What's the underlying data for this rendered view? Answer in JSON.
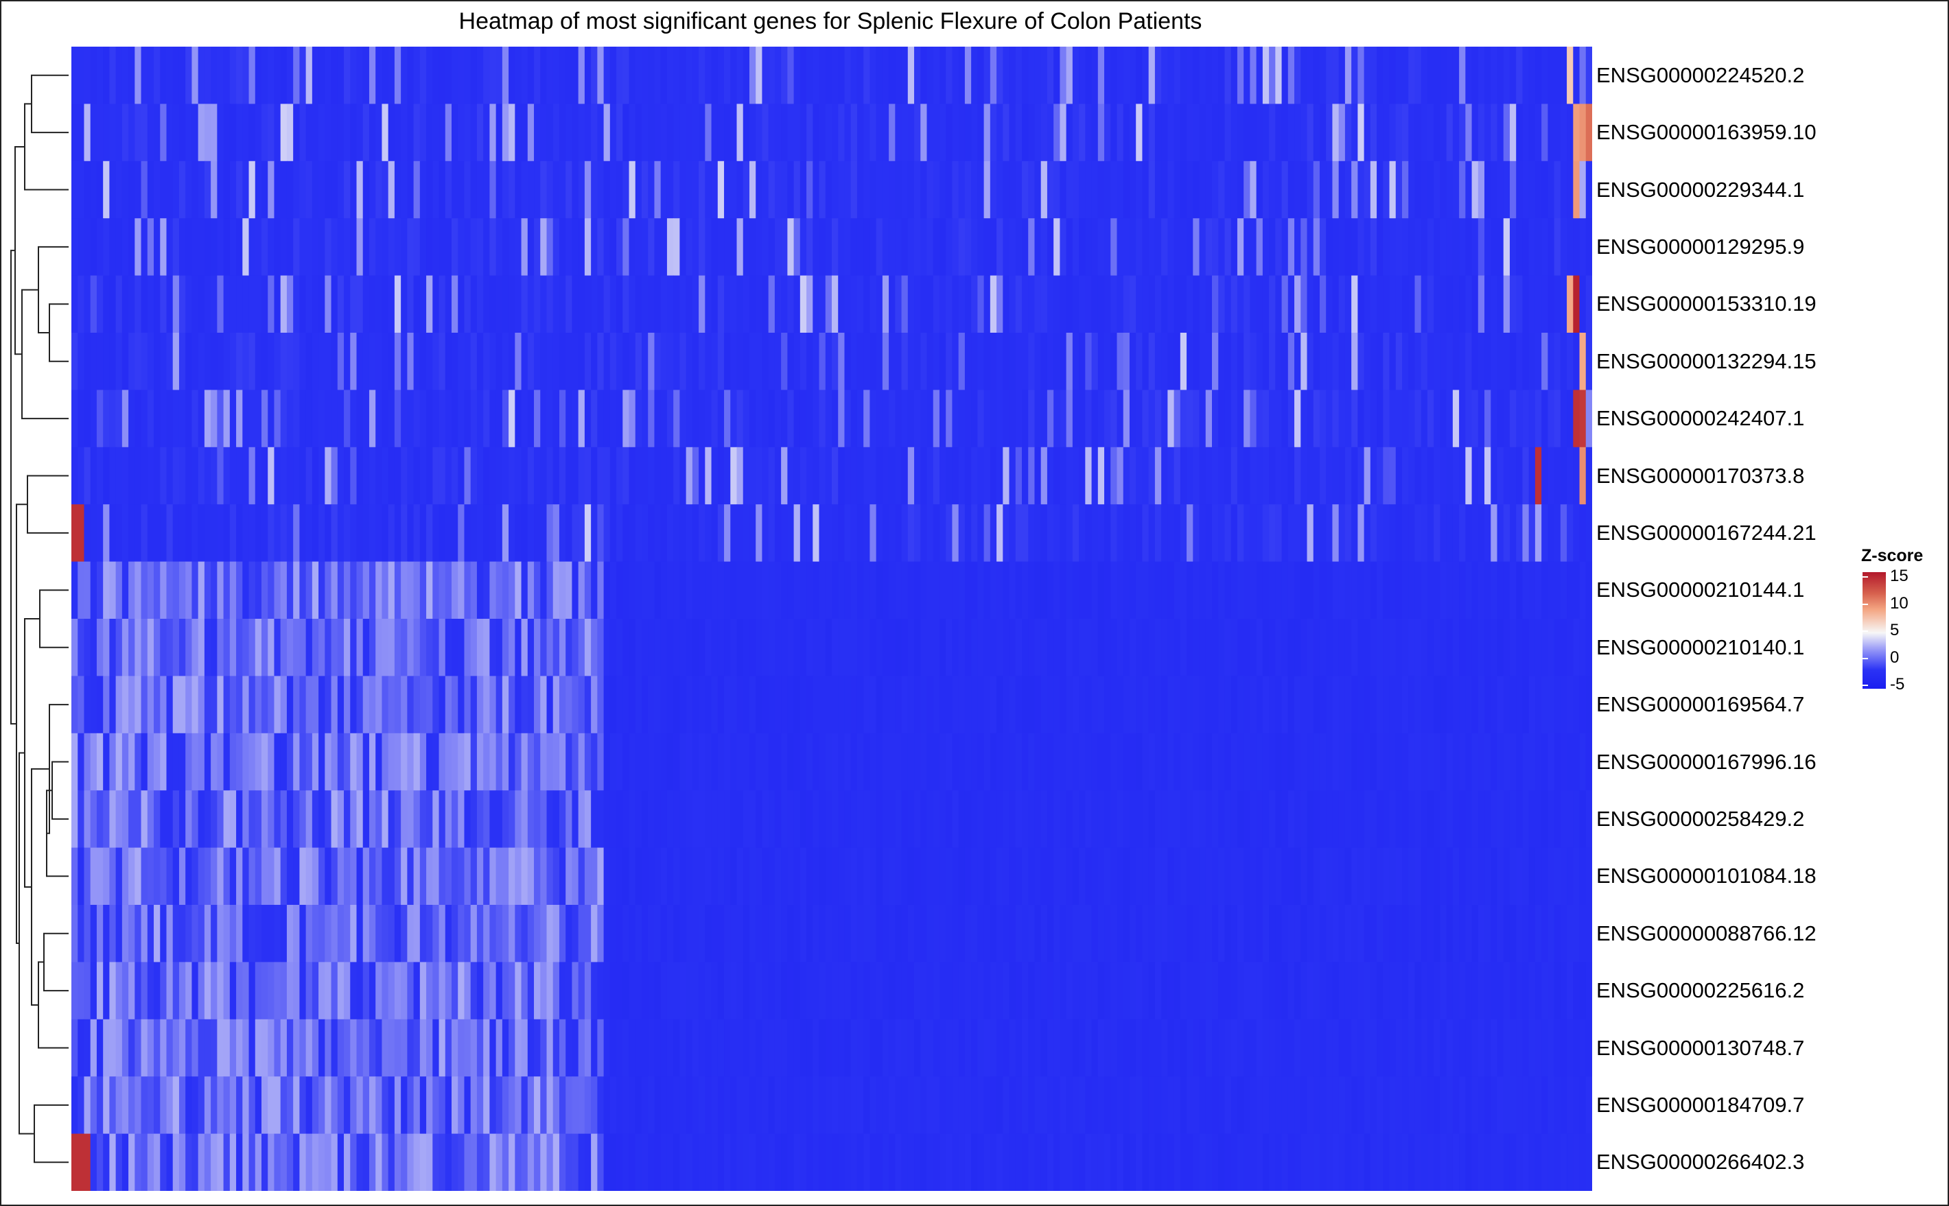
{
  "chart_data": {
    "type": "heatmap",
    "title": "Heatmap of most significant genes for Splenic Flexure of Colon Patients",
    "rows": [
      "ENSG00000224520.2",
      "ENSG00000163959.10",
      "ENSG00000229344.1",
      "ENSG00000129295.9",
      "ENSG00000153310.19",
      "ENSG00000132294.15",
      "ENSG00000242407.1",
      "ENSG00000170373.8",
      "ENSG00000167244.21",
      "ENSG00000210144.1",
      "ENSG00000210140.1",
      "ENSG00000169564.7",
      "ENSG00000167996.16",
      "ENSG00000258429.2",
      "ENSG00000101084.18",
      "ENSG00000088766.12",
      "ENSG00000225616.2",
      "ENSG00000130748.7",
      "ENSG00000184709.7",
      "ENSG00000266402.3"
    ],
    "legend": {
      "title": "Z-score",
      "ticks": [
        "15",
        "10",
        "5",
        "0",
        "-5"
      ],
      "range": [
        -5,
        15
      ],
      "colors": {
        "low": "#1b1ef0",
        "mid": "#f7f7f7",
        "high": "#b2182b"
      }
    },
    "n_columns": 240
  }
}
